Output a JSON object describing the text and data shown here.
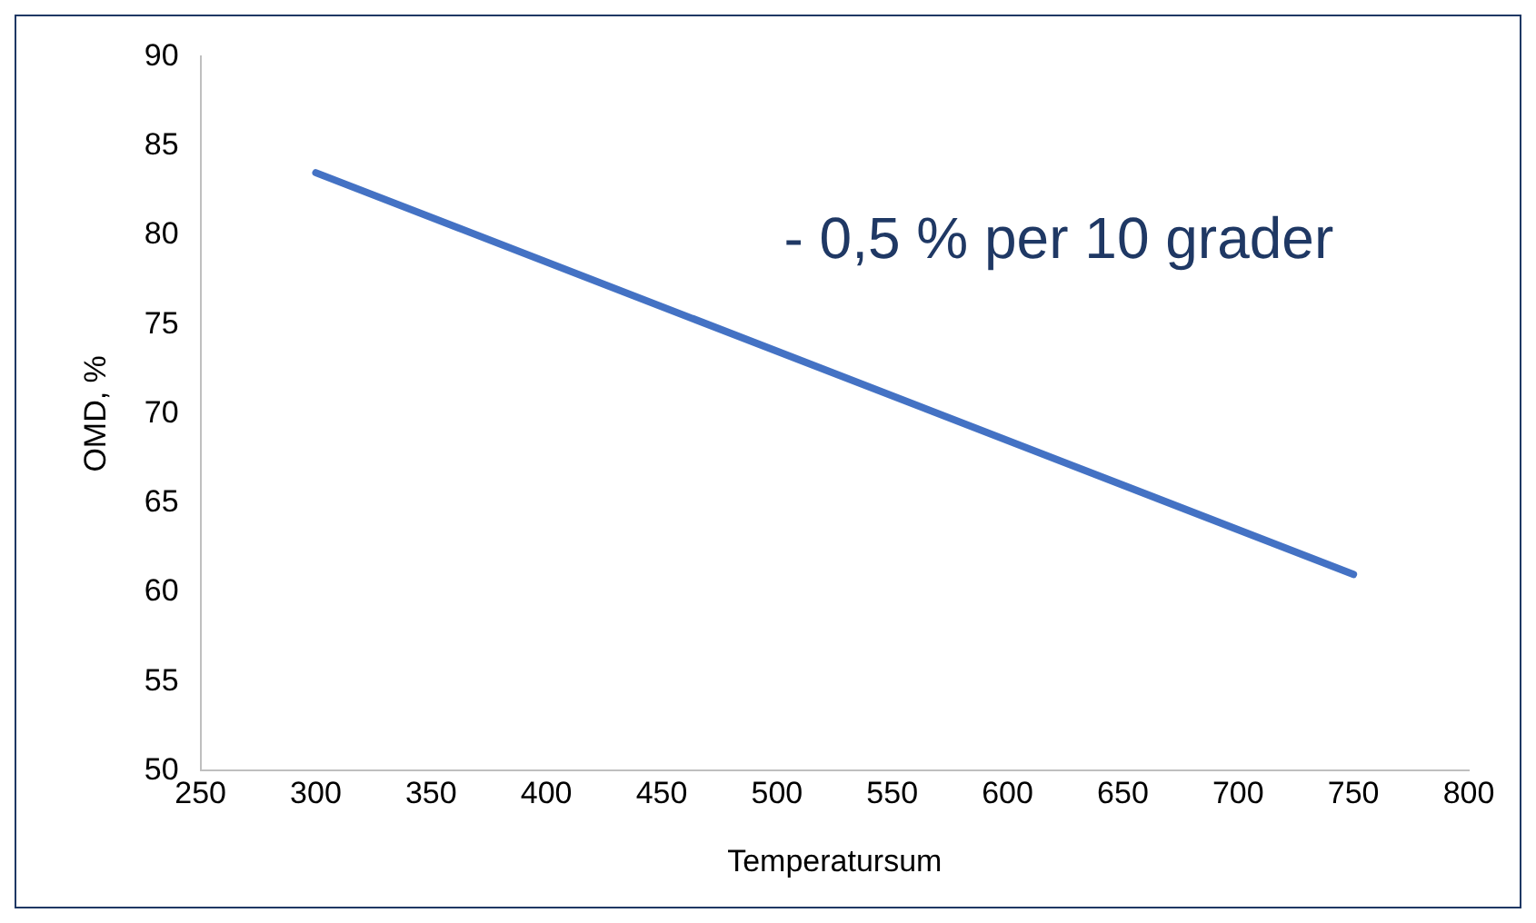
{
  "chart_data": {
    "type": "line",
    "xlabel": "Temperatursum",
    "ylabel": "OMD, %",
    "annotations": [
      "- 0,5 % per 10 grader"
    ],
    "series": [
      {
        "color": "#4472c4",
        "x": [
          300,
          750
        ],
        "values": [
          83.5,
          61
        ]
      }
    ],
    "xlim": [
      250,
      800
    ],
    "xticks": [
      250,
      300,
      350,
      400,
      450,
      500,
      550,
      600,
      650,
      700,
      750,
      800
    ],
    "ylim": [
      50,
      90
    ],
    "yticks": [
      50,
      55,
      60,
      65,
      70,
      75,
      80,
      85,
      90
    ],
    "grid": false,
    "legend": false,
    "marker": "none",
    "line_style": "solid"
  }
}
